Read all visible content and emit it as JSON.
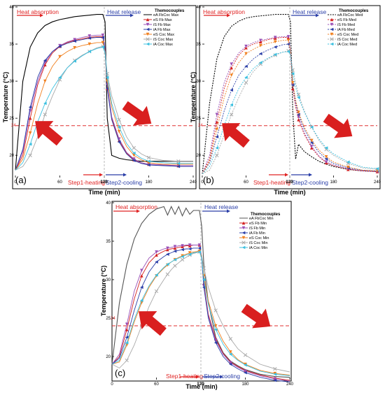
{
  "figure": {
    "colors": {
      "heating": "#e02424",
      "cooling": "#2b3fa8",
      "ref_line": "#e03030",
      "arrow": "#d91f1f",
      "divider": "#aaaaaa"
    }
  },
  "chart_data": [
    {
      "type": "line",
      "panel_label": "(a)",
      "title": "",
      "xlabel": "Time (min)",
      "ylabel": "Temperature (°C)",
      "xlim": [
        0,
        240
      ],
      "ylim": [
        17,
        40
      ],
      "xticks": [
        0,
        60,
        120,
        180,
        240
      ],
      "yticks": [
        20,
        25,
        30,
        35,
        40
      ],
      "reference_line": {
        "y": 24,
        "label": "24"
      },
      "phase_labels": {
        "left_top": "Heat absorption",
        "right_top": "Heat release",
        "left_bottom": "Step1-heating",
        "right_bottom": "Step2-cooling"
      },
      "legend_title": "Themocouples",
      "grid": false,
      "legend_position": "top-right",
      "x": [
        0,
        10,
        20,
        30,
        40,
        50,
        60,
        70,
        80,
        90,
        100,
        110,
        118,
        121,
        124,
        130,
        140,
        150,
        160,
        170,
        180,
        200,
        220,
        240
      ],
      "series": [
        {
          "name": "eA FbCoc Max",
          "color": "#000000",
          "marker": "none",
          "dash": "solid",
          "values": [
            18.0,
            30.0,
            34.6,
            36.5,
            37.5,
            38.0,
            38.3,
            38.5,
            38.7,
            38.8,
            38.9,
            39.0,
            39.0,
            38.0,
            25.0,
            20.0,
            19.6,
            19.4,
            19.3,
            19.2,
            19.2,
            19.2,
            19.2,
            19.2
          ]
        },
        {
          "name": "eS Fb Max",
          "color": "#d42020",
          "marker": "triangle-up",
          "dash": "solid",
          "values": [
            18.0,
            20.0,
            25.0,
            29.5,
            32.2,
            33.8,
            34.7,
            35.2,
            35.5,
            35.7,
            35.9,
            36.0,
            36.0,
            34.0,
            29.0,
            25.0,
            22.0,
            20.3,
            19.4,
            19.0,
            18.8,
            18.7,
            18.6,
            18.6
          ]
        },
        {
          "name": "iS Fb Max",
          "color": "#9a4fb5",
          "marker": "triangle-down",
          "dash": "solid",
          "values": [
            18.0,
            20.5,
            26.0,
            30.0,
            32.5,
            34.0,
            34.8,
            35.3,
            35.6,
            35.9,
            36.1,
            36.2,
            36.2,
            34.5,
            29.5,
            25.2,
            22.2,
            20.4,
            19.5,
            19.0,
            18.8,
            18.7,
            18.6,
            18.6
          ]
        },
        {
          "name": "iA Fb Max",
          "color": "#2b3fa8",
          "marker": "triangle-left",
          "dash": "solid",
          "values": [
            18.0,
            20.8,
            26.5,
            30.5,
            32.8,
            34.0,
            34.7,
            35.1,
            35.4,
            35.6,
            35.8,
            35.9,
            35.9,
            34.2,
            29.0,
            24.8,
            21.8,
            20.2,
            19.3,
            18.9,
            18.7,
            18.6,
            18.5,
            18.5
          ]
        },
        {
          "name": "eS Coc Max",
          "color": "#f08020",
          "marker": "triangle-down",
          "dash": "solid",
          "values": [
            18.0,
            19.5,
            23.0,
            27.0,
            30.0,
            32.0,
            33.3,
            34.0,
            34.5,
            34.8,
            35.0,
            35.2,
            35.2,
            34.0,
            30.0,
            26.5,
            23.2,
            21.2,
            20.0,
            19.4,
            19.0,
            18.8,
            18.8,
            18.8
          ]
        },
        {
          "name": "iS Coc Max",
          "color": "#a9a9a9",
          "marker": "x",
          "dash": "solid",
          "values": [
            18.0,
            18.5,
            20.0,
            22.5,
            25.5,
            28.0,
            30.2,
            31.8,
            32.8,
            33.5,
            34.0,
            34.5,
            34.7,
            34.0,
            31.0,
            28.0,
            24.8,
            22.5,
            21.0,
            20.2,
            19.7,
            19.3,
            19.2,
            19.2
          ]
        },
        {
          "name": "iA Coc Max",
          "color": "#3cc0e0",
          "marker": "triangle-left",
          "dash": "solid",
          "values": [
            18.0,
            19.0,
            21.5,
            24.5,
            27.0,
            29.0,
            30.5,
            31.8,
            32.7,
            33.4,
            34.0,
            34.4,
            34.6,
            33.8,
            30.5,
            27.0,
            23.8,
            21.6,
            20.3,
            19.6,
            19.2,
            19.0,
            18.9,
            18.9
          ]
        }
      ]
    },
    {
      "type": "line",
      "panel_label": "(b)",
      "title": "",
      "xlabel": "Time (min)",
      "ylabel": "Temperature (°C)",
      "xlim": [
        0,
        240
      ],
      "ylim": [
        17,
        40
      ],
      "xticks": [
        0,
        60,
        120,
        180,
        240
      ],
      "yticks": [
        20,
        25,
        30,
        35,
        40
      ],
      "reference_line": {
        "y": 24,
        "label": "24"
      },
      "phase_labels": {
        "left_top": "Heat absorption",
        "right_top": "Heat release",
        "left_bottom": "Step1-heating",
        "right_bottom": "Step2-cooling"
      },
      "legend_title": "Themocouples",
      "grid": false,
      "legend_position": "top-right",
      "x": [
        0,
        10,
        20,
        30,
        40,
        50,
        60,
        70,
        80,
        90,
        100,
        110,
        118,
        121,
        124,
        128,
        132,
        140,
        150,
        160,
        170,
        180,
        200,
        220,
        240
      ],
      "series": [
        {
          "name": "eA FbCoc Med",
          "color": "#000000",
          "marker": "none",
          "dash": "dot",
          "values": [
            17.5,
            27.0,
            33.0,
            36.0,
            37.4,
            38.1,
            38.5,
            38.7,
            38.8,
            38.9,
            39.0,
            39.0,
            39.0,
            38.0,
            26.0,
            19.5,
            21.5,
            20.5,
            19.8,
            19.2,
            18.8,
            18.5,
            18.1,
            17.9,
            17.8
          ]
        },
        {
          "name": "eS Fb Med",
          "color": "#d42020",
          "marker": "triangle-up",
          "dash": "dot",
          "values": [
            17.5,
            19.5,
            24.5,
            29.0,
            31.8,
            33.5,
            34.5,
            35.0,
            35.3,
            35.6,
            35.8,
            35.9,
            35.9,
            34.0,
            29.0,
            26.5,
            24.8,
            22.8,
            21.0,
            19.8,
            19.0,
            18.6,
            18.1,
            17.9,
            17.8
          ]
        },
        {
          "name": "iS Fb Med",
          "color": "#9a4fb5",
          "marker": "triangle-down",
          "dash": "dot",
          "values": [
            17.5,
            20.0,
            25.5,
            29.8,
            32.3,
            33.8,
            34.7,
            35.2,
            35.5,
            35.7,
            35.9,
            36.0,
            36.0,
            34.2,
            29.5,
            27.0,
            25.2,
            23.0,
            21.2,
            19.9,
            19.1,
            18.7,
            18.2,
            17.9,
            17.8
          ]
        },
        {
          "name": "iA Fb Med",
          "color": "#2b3fa8",
          "marker": "triangle-left",
          "dash": "dot",
          "values": [
            17.5,
            19.0,
            22.5,
            26.0,
            28.8,
            30.8,
            32.0,
            33.0,
            33.7,
            34.2,
            34.6,
            34.9,
            35.0,
            33.8,
            29.5,
            27.2,
            25.5,
            23.5,
            21.7,
            20.4,
            19.5,
            18.9,
            18.3,
            18.0,
            17.9
          ]
        },
        {
          "name": "eS Coc Med",
          "color": "#f08020",
          "marker": "triangle-down",
          "dash": "dot",
          "values": [
            17.5,
            19.2,
            23.5,
            27.8,
            30.8,
            32.5,
            33.7,
            34.3,
            34.8,
            35.1,
            35.3,
            35.5,
            35.5,
            34.0,
            29.8,
            27.5,
            25.8,
            23.8,
            22.0,
            20.7,
            19.8,
            19.1,
            18.4,
            18.0,
            17.9
          ]
        },
        {
          "name": "iS Coc Med",
          "color": "#a9a9a9",
          "marker": "x",
          "dash": "dot",
          "values": [
            17.5,
            18.0,
            20.0,
            22.8,
            25.5,
            27.8,
            29.8,
            31.3,
            32.3,
            33.0,
            33.5,
            33.9,
            34.1,
            33.6,
            31.5,
            29.8,
            28.2,
            26.0,
            23.8,
            22.0,
            20.8,
            20.0,
            18.9,
            18.3,
            18.1
          ]
        },
        {
          "name": "iA Coc Med",
          "color": "#3cc0e0",
          "marker": "triangle-left",
          "dash": "dot",
          "values": [
            17.5,
            18.5,
            21.0,
            24.0,
            26.8,
            29.0,
            30.5,
            31.7,
            32.5,
            33.1,
            33.6,
            33.9,
            34.0,
            33.5,
            31.0,
            29.2,
            27.8,
            25.8,
            23.8,
            22.2,
            21.0,
            20.2,
            19.1,
            18.4,
            18.2
          ]
        }
      ]
    },
    {
      "type": "line",
      "panel_label": "(c)",
      "title": "",
      "xlabel": "Time (min)",
      "ylabel": "Temperature (°C)",
      "xlim": [
        0,
        240
      ],
      "ylim": [
        17,
        40
      ],
      "xticks": [
        0,
        60,
        120,
        180,
        240
      ],
      "yticks": [
        20,
        25,
        30,
        35,
        40
      ],
      "reference_line": {
        "y": 24,
        "label": "24"
      },
      "phase_labels": {
        "left_top": "Heat absorption",
        "right_top": "Heat release",
        "left_bottom": "Step1-heating",
        "right_bottom": "Step2-cooling"
      },
      "legend_title": "Themocouples",
      "grid": false,
      "legend_position": "top-right",
      "x": [
        0,
        10,
        20,
        30,
        40,
        50,
        60,
        70,
        75,
        80,
        85,
        90,
        95,
        100,
        105,
        110,
        118,
        121,
        124,
        130,
        140,
        150,
        160,
        170,
        180,
        200,
        220,
        240
      ],
      "series": [
        {
          "name": "eA FbCoc Min",
          "color": "#555555",
          "marker": "none",
          "dash": "solid",
          "values": [
            19.0,
            27.0,
            32.0,
            35.3,
            37.3,
            38.5,
            39.2,
            39.5,
            38.4,
            39.5,
            38.5,
            39.5,
            38.3,
            39.3,
            38.5,
            39.0,
            39.0,
            37.0,
            32.0,
            27.0,
            22.5,
            20.5,
            19.4,
            18.8,
            18.3,
            17.7,
            17.4,
            17.3
          ]
        },
        {
          "name": "eS Fb Min",
          "color": "#d42020",
          "marker": "triangle-up",
          "dash": "solid",
          "values": [
            19.0,
            20.0,
            23.5,
            27.5,
            30.5,
            32.2,
            33.2,
            33.7,
            33.9,
            34.0,
            34.1,
            34.2,
            34.3,
            34.4,
            34.4,
            34.5,
            34.5,
            33.0,
            29.5,
            25.5,
            22.3,
            20.4,
            19.3,
            18.7,
            18.2,
            17.6,
            17.2,
            16.9
          ]
        },
        {
          "name": "iS Fb Min",
          "color": "#9a4fb5",
          "marker": "triangle-down",
          "dash": "solid",
          "values": [
            19.0,
            20.3,
            24.2,
            28.5,
            31.2,
            32.8,
            33.6,
            34.0,
            34.1,
            34.2,
            34.3,
            34.4,
            34.4,
            34.5,
            34.5,
            34.5,
            34.5,
            33.0,
            29.2,
            25.3,
            22.1,
            20.3,
            19.2,
            18.6,
            18.1,
            17.5,
            17.1,
            16.8
          ]
        },
        {
          "name": "iA Fb Min",
          "color": "#2b3fa8",
          "marker": "triangle-left",
          "dash": "solid",
          "values": [
            19.0,
            19.8,
            22.5,
            26.0,
            29.0,
            31.0,
            32.3,
            33.0,
            33.3,
            33.5,
            33.7,
            33.8,
            33.9,
            34.0,
            34.0,
            34.1,
            34.1,
            32.8,
            29.0,
            25.0,
            21.8,
            20.0,
            19.0,
            18.4,
            17.9,
            17.3,
            16.9,
            16.7
          ]
        },
        {
          "name": "eS Coc Min",
          "color": "#f08020",
          "marker": "triangle-down",
          "dash": "solid",
          "values": [
            19.0,
            19.3,
            21.5,
            24.5,
            27.0,
            29.0,
            30.5,
            31.5,
            31.9,
            32.3,
            32.6,
            32.9,
            33.1,
            33.3,
            33.5,
            33.6,
            33.7,
            33.0,
            30.5,
            27.2,
            24.0,
            22.0,
            20.6,
            19.6,
            19.0,
            18.2,
            17.8,
            17.6
          ]
        },
        {
          "name": "iS Coc Min",
          "color": "#a9a9a9",
          "marker": "x",
          "dash": "solid",
          "values": [
            19.0,
            18.5,
            19.5,
            21.5,
            24.0,
            26.5,
            28.5,
            30.0,
            30.7,
            31.3,
            31.8,
            32.2,
            32.6,
            32.9,
            33.2,
            33.4,
            33.6,
            33.2,
            31.5,
            29.0,
            26.0,
            24.0,
            22.3,
            21.0,
            20.2,
            19.0,
            18.4,
            18.0
          ]
        },
        {
          "name": "iA Coc Min",
          "color": "#3cc0e0",
          "marker": "triangle-left",
          "dash": "solid",
          "values": [
            19.0,
            19.5,
            21.8,
            24.8,
            27.3,
            29.2,
            30.6,
            31.6,
            32.0,
            32.3,
            32.6,
            32.8,
            33.0,
            33.2,
            33.3,
            33.5,
            33.6,
            32.8,
            30.0,
            26.8,
            23.5,
            21.6,
            20.3,
            19.5,
            18.9,
            18.1,
            17.7,
            17.5
          ]
        }
      ]
    }
  ]
}
